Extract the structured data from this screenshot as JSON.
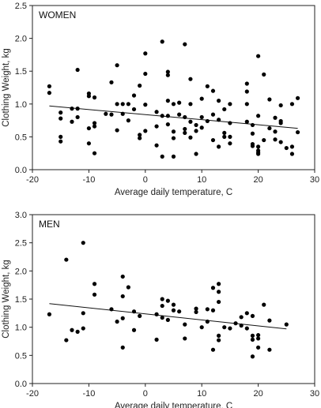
{
  "chart_data": [
    {
      "type": "scatter",
      "title": "WOMEN",
      "xlabel": "Average daily temperature, C",
      "ylabel": "Clothing Weight, kg",
      "xlim": [
        -20,
        30
      ],
      "ylim": [
        0,
        2.5
      ],
      "xticks": [
        -20,
        -10,
        0,
        10,
        20,
        30
      ],
      "yticks": [
        "0.0",
        "0.5",
        "1.0",
        "1.5",
        "2.0",
        "2.5"
      ],
      "grid": false,
      "trendline": {
        "x": [
          -17,
          27
        ],
        "y": [
          0.97,
          0.63
        ]
      },
      "points": [
        [
          -17,
          1.27
        ],
        [
          -17,
          1.17
        ],
        [
          -15,
          0.87
        ],
        [
          -15,
          0.78
        ],
        [
          -15,
          0.5
        ],
        [
          -15,
          0.43
        ],
        [
          -13,
          0.93
        ],
        [
          -13,
          0.73
        ],
        [
          -12,
          1.52
        ],
        [
          -12,
          0.93
        ],
        [
          -12,
          0.8
        ],
        [
          -10,
          1.16
        ],
        [
          -10,
          1.12
        ],
        [
          -10,
          0.63
        ],
        [
          -10,
          0.4
        ],
        [
          -9,
          1.1
        ],
        [
          -9,
          0.71
        ],
        [
          -9,
          0.66
        ],
        [
          -9,
          0.25
        ],
        [
          -7,
          0.85
        ],
        [
          -6,
          1.33
        ],
        [
          -6,
          0.84
        ],
        [
          -5,
          1.59
        ],
        [
          -5,
          1.0
        ],
        [
          -5,
          0.6
        ],
        [
          -4,
          1.0
        ],
        [
          -4,
          0.85
        ],
        [
          -3,
          1.0
        ],
        [
          -3,
          0.75
        ],
        [
          -2,
          1.13
        ],
        [
          -2,
          0.92
        ],
        [
          -1,
          1.28
        ],
        [
          -1,
          0.53
        ],
        [
          -1,
          0.48
        ],
        [
          0,
          1.77
        ],
        [
          0,
          1.46
        ],
        [
          0,
          0.99
        ],
        [
          0,
          0.59
        ],
        [
          2,
          0.88
        ],
        [
          2,
          0.66
        ],
        [
          2,
          0.37
        ],
        [
          3,
          1.95
        ],
        [
          3,
          0.82
        ],
        [
          3,
          0.2
        ],
        [
          4,
          1.49
        ],
        [
          4,
          1.44
        ],
        [
          4,
          1.05
        ],
        [
          4,
          0.82
        ],
        [
          4,
          0.69
        ],
        [
          5,
          1.0
        ],
        [
          5,
          0.58
        ],
        [
          5,
          0.48
        ],
        [
          5,
          0.2
        ],
        [
          6,
          1.02
        ],
        [
          6,
          0.84
        ],
        [
          7,
          1.91
        ],
        [
          7,
          0.8
        ],
        [
          7,
          0.62
        ],
        [
          7,
          0.56
        ],
        [
          8,
          1.38
        ],
        [
          8,
          1.0
        ],
        [
          8,
          0.73
        ],
        [
          8,
          0.49
        ],
        [
          9,
          0.68
        ],
        [
          9,
          0.59
        ],
        [
          9,
          0.24
        ],
        [
          10,
          1.08
        ],
        [
          10,
          0.8
        ],
        [
          10,
          0.64
        ],
        [
          11,
          1.27
        ],
        [
          11,
          0.74
        ],
        [
          12,
          1.2
        ],
        [
          12,
          0.84
        ],
        [
          12,
          0.45
        ],
        [
          13,
          1.05
        ],
        [
          13,
          0.76
        ],
        [
          13,
          0.35
        ],
        [
          14,
          0.92
        ],
        [
          14,
          0.56
        ],
        [
          14,
          0.5
        ],
        [
          15,
          1.0
        ],
        [
          15,
          0.71
        ],
        [
          15,
          0.5
        ],
        [
          15,
          0.4
        ],
        [
          18,
          1.31
        ],
        [
          18,
          1.19
        ],
        [
          18,
          1.0
        ],
        [
          18,
          0.73
        ],
        [
          19,
          0.68
        ],
        [
          19,
          0.55
        ],
        [
          19,
          0.39
        ],
        [
          19,
          0.36
        ],
        [
          20,
          0.35
        ],
        [
          20,
          0.29
        ],
        [
          20,
          0.26
        ],
        [
          20,
          0.24
        ],
        [
          20,
          0.82
        ],
        [
          20,
          1.73
        ],
        [
          21,
          1.45
        ],
        [
          21,
          0.45
        ],
        [
          22,
          1.07
        ],
        [
          22,
          0.63
        ],
        [
          23,
          0.79
        ],
        [
          23,
          0.58
        ],
        [
          23,
          0.46
        ],
        [
          24,
          0.74
        ],
        [
          24,
          0.71
        ],
        [
          24,
          0.98
        ],
        [
          24,
          0.42
        ],
        [
          25,
          0.33
        ],
        [
          26,
          0.35
        ],
        [
          26,
          0.24
        ],
        [
          27,
          0.57
        ],
        [
          27,
          1.09
        ],
        [
          26,
          1.0
        ]
      ]
    },
    {
      "type": "scatter",
      "title": "MEN",
      "xlabel": "Average daily temperature, C",
      "ylabel": "Clothing Weight, kg",
      "xlim": [
        -20,
        30
      ],
      "ylim": [
        0,
        3.0
      ],
      "xticks": [
        -20,
        -10,
        0,
        10,
        20,
        30
      ],
      "yticks": [
        "0.0",
        "0.5",
        "1.0",
        "1.5",
        "2.0",
        "2.5",
        "3.0"
      ],
      "grid": false,
      "trendline": {
        "x": [
          -17,
          25
        ],
        "y": [
          1.42,
          0.97
        ]
      },
      "points": [
        [
          -17,
          1.23
        ],
        [
          -14,
          2.2
        ],
        [
          -14,
          0.77
        ],
        [
          -13,
          0.95
        ],
        [
          -12,
          0.92
        ],
        [
          -11,
          2.5
        ],
        [
          -11,
          1.25
        ],
        [
          -11,
          0.98
        ],
        [
          -9,
          1.77
        ],
        [
          -9,
          1.58
        ],
        [
          -6,
          1.32
        ],
        [
          -5,
          1.1
        ],
        [
          -4,
          1.9
        ],
        [
          -4,
          1.55
        ],
        [
          -4,
          1.16
        ],
        [
          -4,
          0.64
        ],
        [
          -3,
          1.71
        ],
        [
          -2,
          1.28
        ],
        [
          -2,
          0.95
        ],
        [
          -1,
          1.2
        ],
        [
          2,
          1.23
        ],
        [
          2,
          0.78
        ],
        [
          3,
          1.5
        ],
        [
          3,
          1.38
        ],
        [
          3,
          1.17
        ],
        [
          4,
          1.47
        ],
        [
          4,
          1.13
        ],
        [
          5,
          1.4
        ],
        [
          5,
          1.3
        ],
        [
          6,
          1.28
        ],
        [
          7,
          1.05
        ],
        [
          7,
          0.8
        ],
        [
          9,
          1.33
        ],
        [
          9,
          1.27
        ],
        [
          10,
          1.0
        ],
        [
          11,
          1.32
        ],
        [
          11,
          1.1
        ],
        [
          12,
          1.7
        ],
        [
          12,
          1.3
        ],
        [
          12,
          0.6
        ],
        [
          13,
          1.77
        ],
        [
          13,
          1.63
        ],
        [
          13,
          1.45
        ],
        [
          13,
          0.85
        ],
        [
          13,
          0.77
        ],
        [
          14,
          1.0
        ],
        [
          15,
          0.98
        ],
        [
          16,
          1.07
        ],
        [
          17,
          1.18
        ],
        [
          17,
          1.03
        ],
        [
          18,
          1.25
        ],
        [
          18,
          0.98
        ],
        [
          19,
          1.2
        ],
        [
          19,
          0.85
        ],
        [
          19,
          0.78
        ],
        [
          20,
          0.86
        ],
        [
          20,
          0.8
        ],
        [
          19,
          0.48
        ],
        [
          20,
          0.64
        ],
        [
          21,
          1.4
        ],
        [
          22,
          1.12
        ],
        [
          22,
          0.6
        ],
        [
          25,
          1.05
        ]
      ]
    }
  ]
}
